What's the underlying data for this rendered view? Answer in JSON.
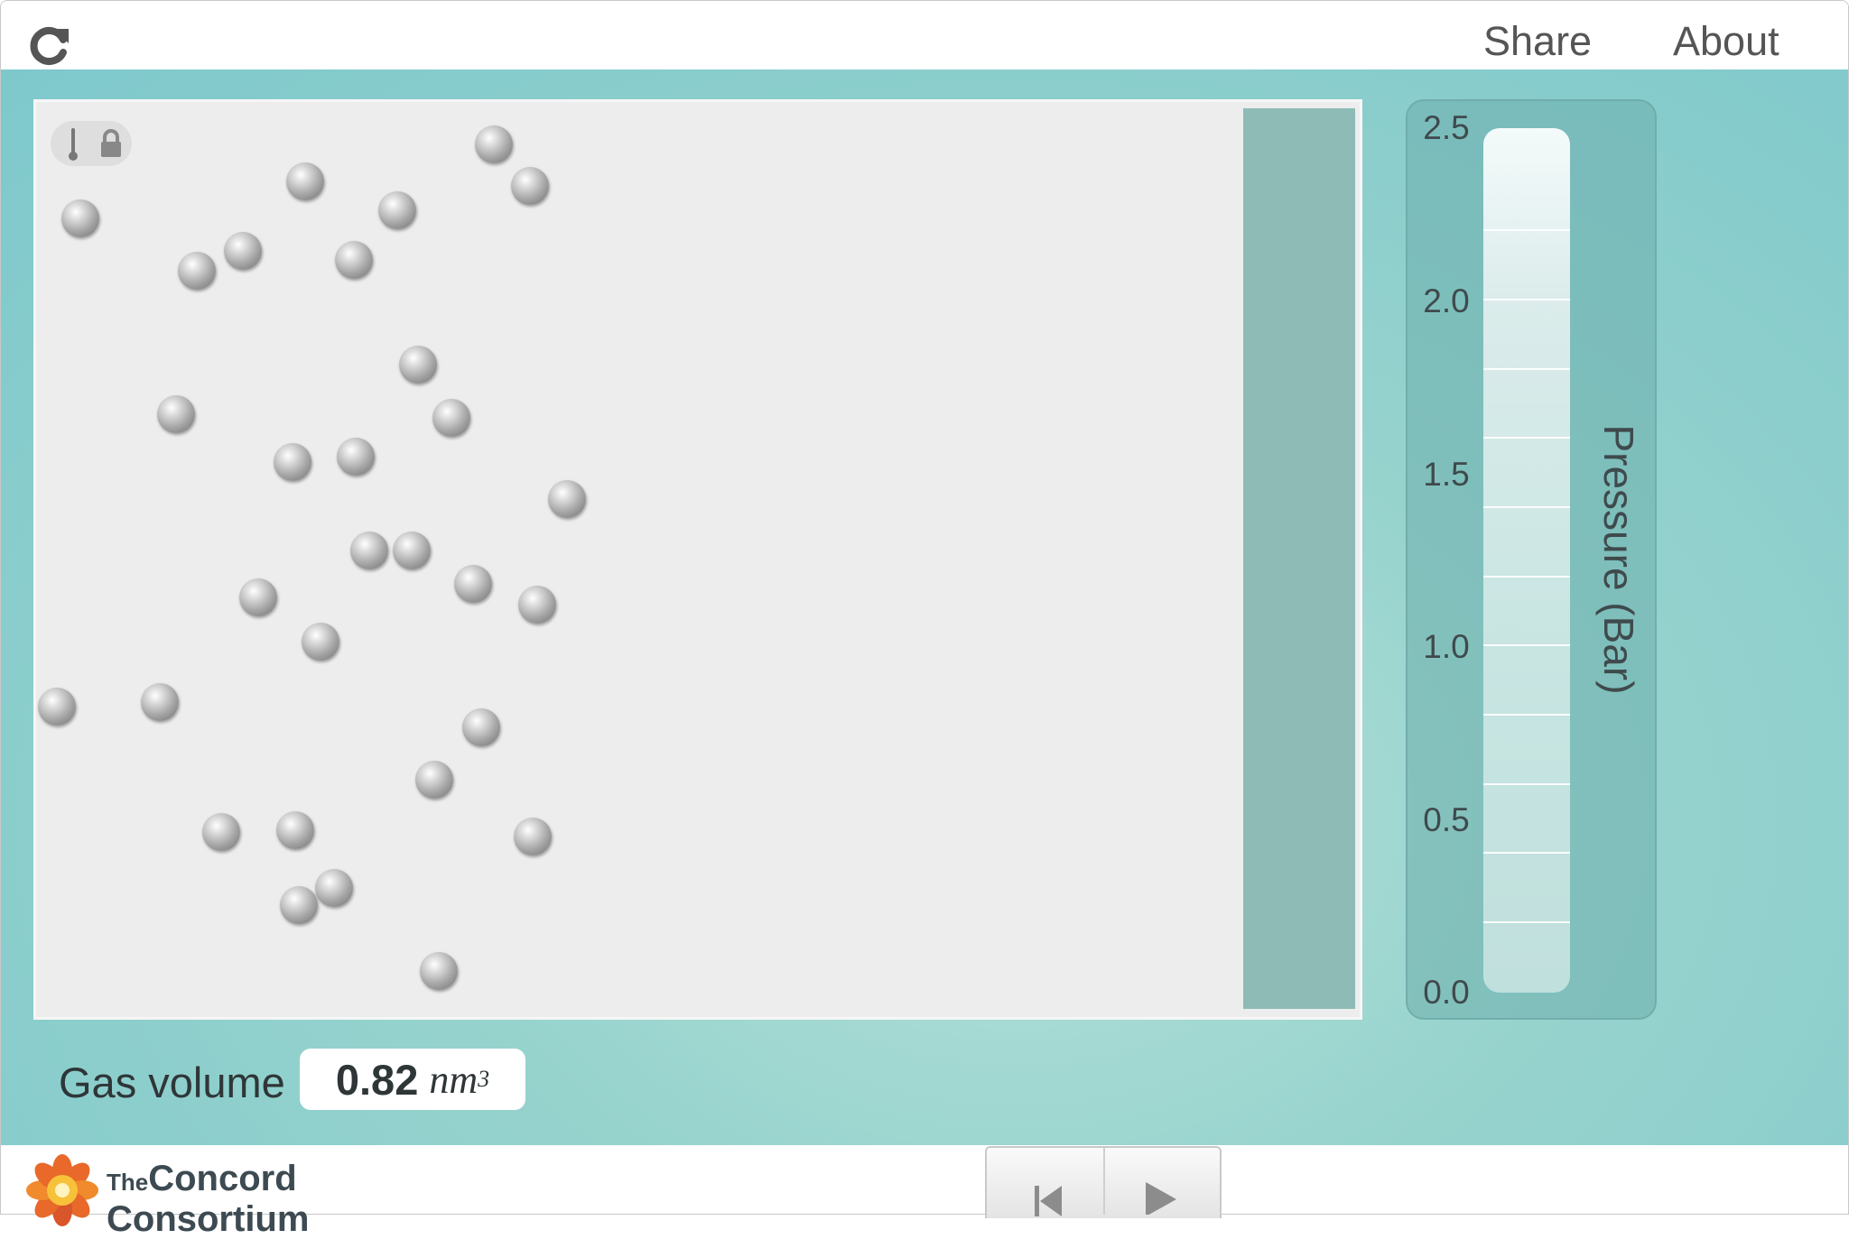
{
  "header": {
    "share_label": "Share",
    "about_label": "About",
    "reload_icon": "reload-icon"
  },
  "simulation": {
    "atom_count": 33,
    "tool_icons": [
      "thermometer-icon",
      "lock-icon"
    ]
  },
  "pressure_gauge": {
    "label": "Pressure (Bar)",
    "ticks": [
      "2.5",
      "2.0",
      "1.5",
      "1.0",
      "0.5",
      "0.0"
    ],
    "range": [
      0.0,
      2.5
    ],
    "fill_color": "#c0e0dd"
  },
  "gas_volume": {
    "label": "Gas volume",
    "value": "0.82",
    "unit": "nm",
    "unit_exponent": "3"
  },
  "footer": {
    "logo_the": "The",
    "logo_concord": "Concord",
    "logo_consortium": "Consortium",
    "playback_icons": [
      "rewind-icon",
      "play-icon"
    ]
  },
  "colors": {
    "background_teal": "#97d3cd",
    "piston": "#8ebbb5",
    "container": "#ededed"
  }
}
